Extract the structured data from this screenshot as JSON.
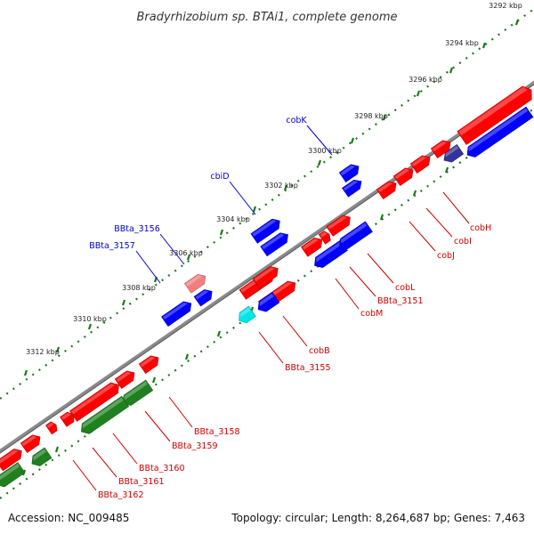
{
  "title": "Bradyrhizobium sp. BTAi1, complete genome",
  "accession": "Accession: NC_009485",
  "summary": "Topology: circular; Length: 8,264,687 bp; Genes: 7,463",
  "colors": {
    "backbone": "#808080",
    "tick": "#1a7a1a",
    "feature_red": "#ff0000",
    "feature_blue": "#0000ff",
    "feature_green": "#208020",
    "feature_pink": "#f08080",
    "feature_cyan": "#00e5e5",
    "feature_navy": "#333399",
    "label_red": "#cc0000",
    "label_blue": "#0000cc"
  },
  "scale_labels": [
    "3292 kbp",
    "3294 kbp",
    "3296 kbp",
    "3298 kbp",
    "3300 kbp",
    "3302 kbp",
    "3304 kbp",
    "3306 kbp",
    "3308 kbp",
    "3310 kbp",
    "3312 kbp"
  ],
  "outer_labels": [
    {
      "text": "cobK",
      "color": "blue"
    },
    {
      "text": "cbiD",
      "color": "blue"
    },
    {
      "text": "BBta_3156",
      "color": "blue"
    },
    {
      "text": "BBta_3157",
      "color": "blue"
    }
  ],
  "inner_labels": [
    {
      "text": "cobH",
      "color": "red"
    },
    {
      "text": "cobI",
      "color": "red"
    },
    {
      "text": "cobJ",
      "color": "red"
    },
    {
      "text": "cobL",
      "color": "red"
    },
    {
      "text": "BBta_3151",
      "color": "red"
    },
    {
      "text": "cobM",
      "color": "red"
    },
    {
      "text": "cobB",
      "color": "red"
    },
    {
      "text": "BBta_3155",
      "color": "red"
    },
    {
      "text": "BBta_3158",
      "color": "red"
    },
    {
      "text": "BBta_3159",
      "color": "red"
    },
    {
      "text": "BBta_3160",
      "color": "red"
    },
    {
      "text": "BBta_3161",
      "color": "red"
    },
    {
      "text": "BBta_3162",
      "color": "red"
    }
  ],
  "features": [
    {
      "lane": "fwd_outer",
      "color": "blue"
    },
    {
      "lane": "fwd_outer",
      "color": "blue"
    },
    {
      "lane": "fwd_outer",
      "color": "blue"
    },
    {
      "lane": "fwd_outer",
      "color": "blue"
    },
    {
      "lane": "fwd_outer",
      "color": "pink"
    },
    {
      "lane": "fwd_outer",
      "color": "blue"
    },
    {
      "lane": "fwd_outer",
      "color": "blue"
    },
    {
      "lane": "fwd_inner",
      "color": "red"
    },
    {
      "lane": "rev_inner",
      "color": "blue"
    },
    {
      "lane": "rev_inner",
      "color": "navy"
    },
    {
      "lane": "fwd_inner",
      "color": "red"
    },
    {
      "lane": "fwd_inner",
      "color": "red"
    },
    {
      "lane": "fwd_inner",
      "color": "red"
    },
    {
      "lane": "fwd_inner",
      "color": "red"
    },
    {
      "lane": "fwd_inner",
      "color": "red"
    },
    {
      "lane": "fwd_inner",
      "color": "red"
    },
    {
      "lane": "fwd_inner",
      "color": "red"
    },
    {
      "lane": "fwd_inner",
      "color": "red"
    },
    {
      "lane": "fwd_inner",
      "color": "red"
    },
    {
      "lane": "rev_inner",
      "color": "blue"
    },
    {
      "lane": "rev_inner",
      "color": "blue"
    },
    {
      "lane": "fwd_inner",
      "color": "red"
    },
    {
      "lane": "rev_inner",
      "color": "blue"
    },
    {
      "lane": "rev_inner",
      "color": "cyan"
    },
    {
      "lane": "fwd_inner",
      "color": "red"
    },
    {
      "lane": "fwd_inner",
      "color": "red"
    },
    {
      "lane": "fwd_inner",
      "color": "red"
    },
    {
      "lane": "fwd_inner",
      "color": "red"
    },
    {
      "lane": "rev_inner",
      "color": "green"
    },
    {
      "lane": "rev_inner",
      "color": "green"
    },
    {
      "lane": "fwd_inner",
      "color": "red"
    },
    {
      "lane": "fwd_inner",
      "color": "red"
    },
    {
      "lane": "fwd_inner",
      "color": "red"
    },
    {
      "lane": "rev_inner",
      "color": "green"
    },
    {
      "lane": "rev_inner",
      "color": "green"
    }
  ]
}
